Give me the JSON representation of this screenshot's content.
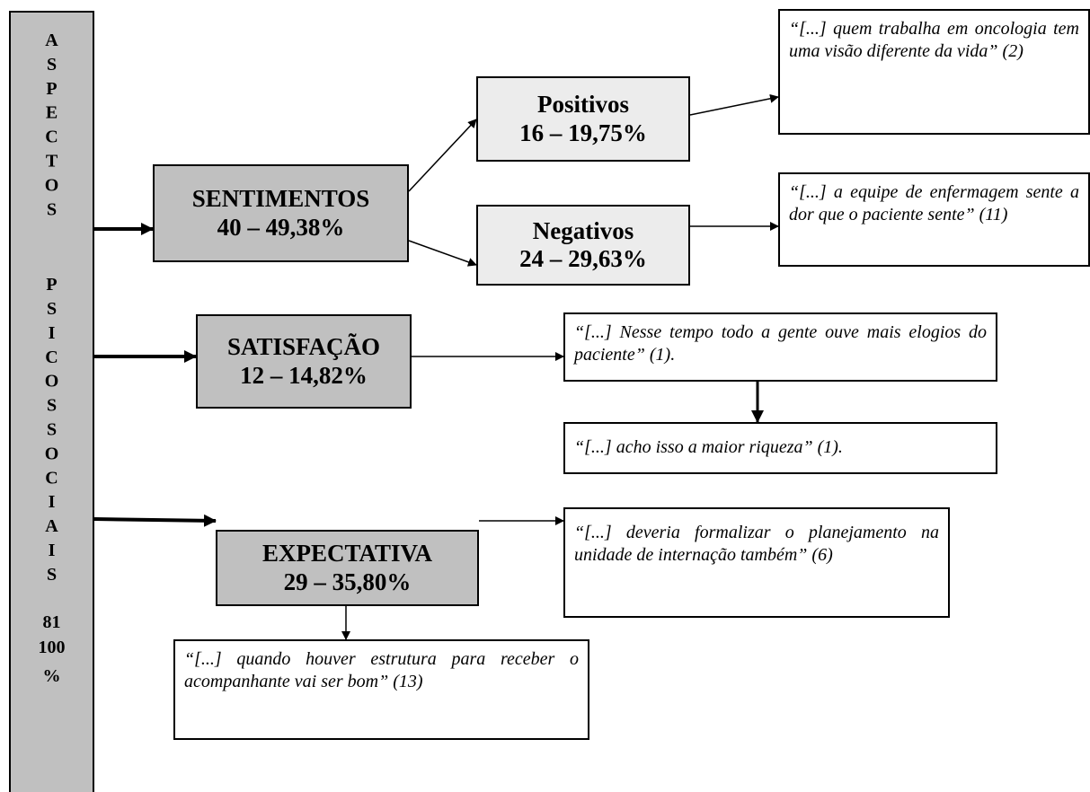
{
  "sidebar": {
    "title": "ASPECTOS PSICOSSOCIAIS",
    "count": "81",
    "percent": "100 %"
  },
  "nodes": [
    {
      "label": "SENTIMENTOS",
      "value": "40 – 49,38%"
    },
    {
      "label": "Positivos",
      "value": "16 – 19,75%"
    },
    {
      "label": "Negativos",
      "value": "24 – 29,63%"
    },
    {
      "label": "SATISFAÇÃO",
      "value": "12 – 14,82%"
    },
    {
      "label": "EXPECTATIVA",
      "value": "29 – 35,80%"
    }
  ],
  "quotes": [
    "“[...] quem trabalha em oncologia tem uma visão diferente da vida” (2)",
    "“[...] a equipe de enfermagem sente a dor que o paciente sente” (11)",
    "“[...] Nesse tempo todo a gente ouve mais elogios do paciente” (1).",
    "“[...] acho isso a maior riqueza” (1).",
    "“[...] deveria formalizar o planejamento na unidade de internação também” (6)",
    "“[...] quando houver estrutura para receber o acompanhante vai ser bom” (13)"
  ]
}
